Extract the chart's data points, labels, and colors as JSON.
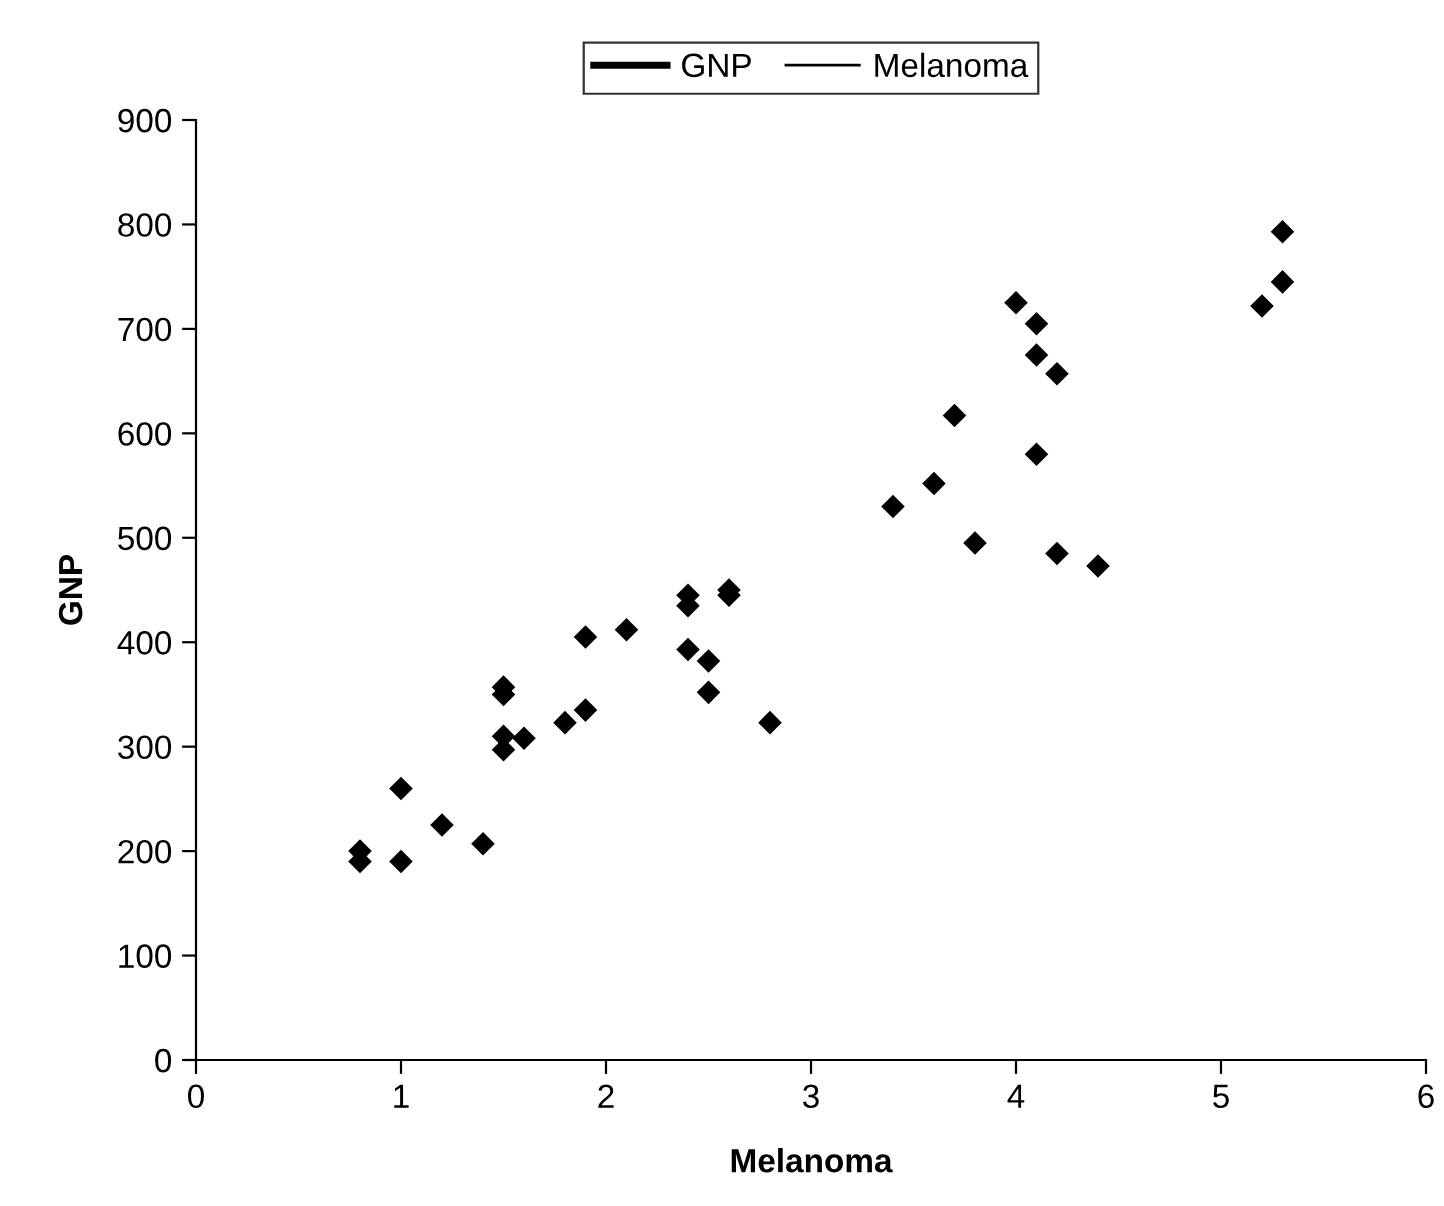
{
  "chart_data": {
    "type": "scatter",
    "xlabel": "Melanoma",
    "ylabel": "GNP",
    "xlim": [
      0,
      6
    ],
    "xticks": [
      0,
      1,
      2,
      3,
      4,
      5,
      6
    ],
    "ylim": [
      0,
      900
    ],
    "yticks": [
      0,
      100,
      200,
      300,
      400,
      500,
      600,
      700,
      800,
      900
    ],
    "grid": false,
    "legend": "top",
    "marker": "diamond",
    "series": [
      {
        "name": "GNP",
        "color": "#000000",
        "x": [
          0.8,
          0.8,
          1.0,
          1.0,
          1.2,
          1.4,
          1.5,
          1.5,
          1.5,
          1.5,
          1.6,
          1.8,
          1.9,
          1.9,
          2.1,
          2.4,
          2.4,
          2.4,
          2.5,
          2.5,
          2.6,
          2.6,
          2.8,
          3.4,
          3.6,
          3.7,
          3.8,
          4.0,
          4.1,
          4.1,
          4.1,
          4.2,
          4.2,
          4.4,
          5.2,
          5.3,
          5.3
        ],
        "values": [
          200,
          190,
          260,
          190,
          225,
          207,
          357,
          350,
          310,
          297,
          308,
          323,
          335,
          405,
          412,
          445,
          435,
          393,
          382,
          352,
          450,
          445,
          323,
          530,
          552,
          617,
          495,
          725,
          705,
          675,
          580,
          657,
          485,
          473,
          722,
          793,
          745
        ]
      },
      {
        "name": "Melanoma",
        "color": "#000000"
      }
    ]
  }
}
